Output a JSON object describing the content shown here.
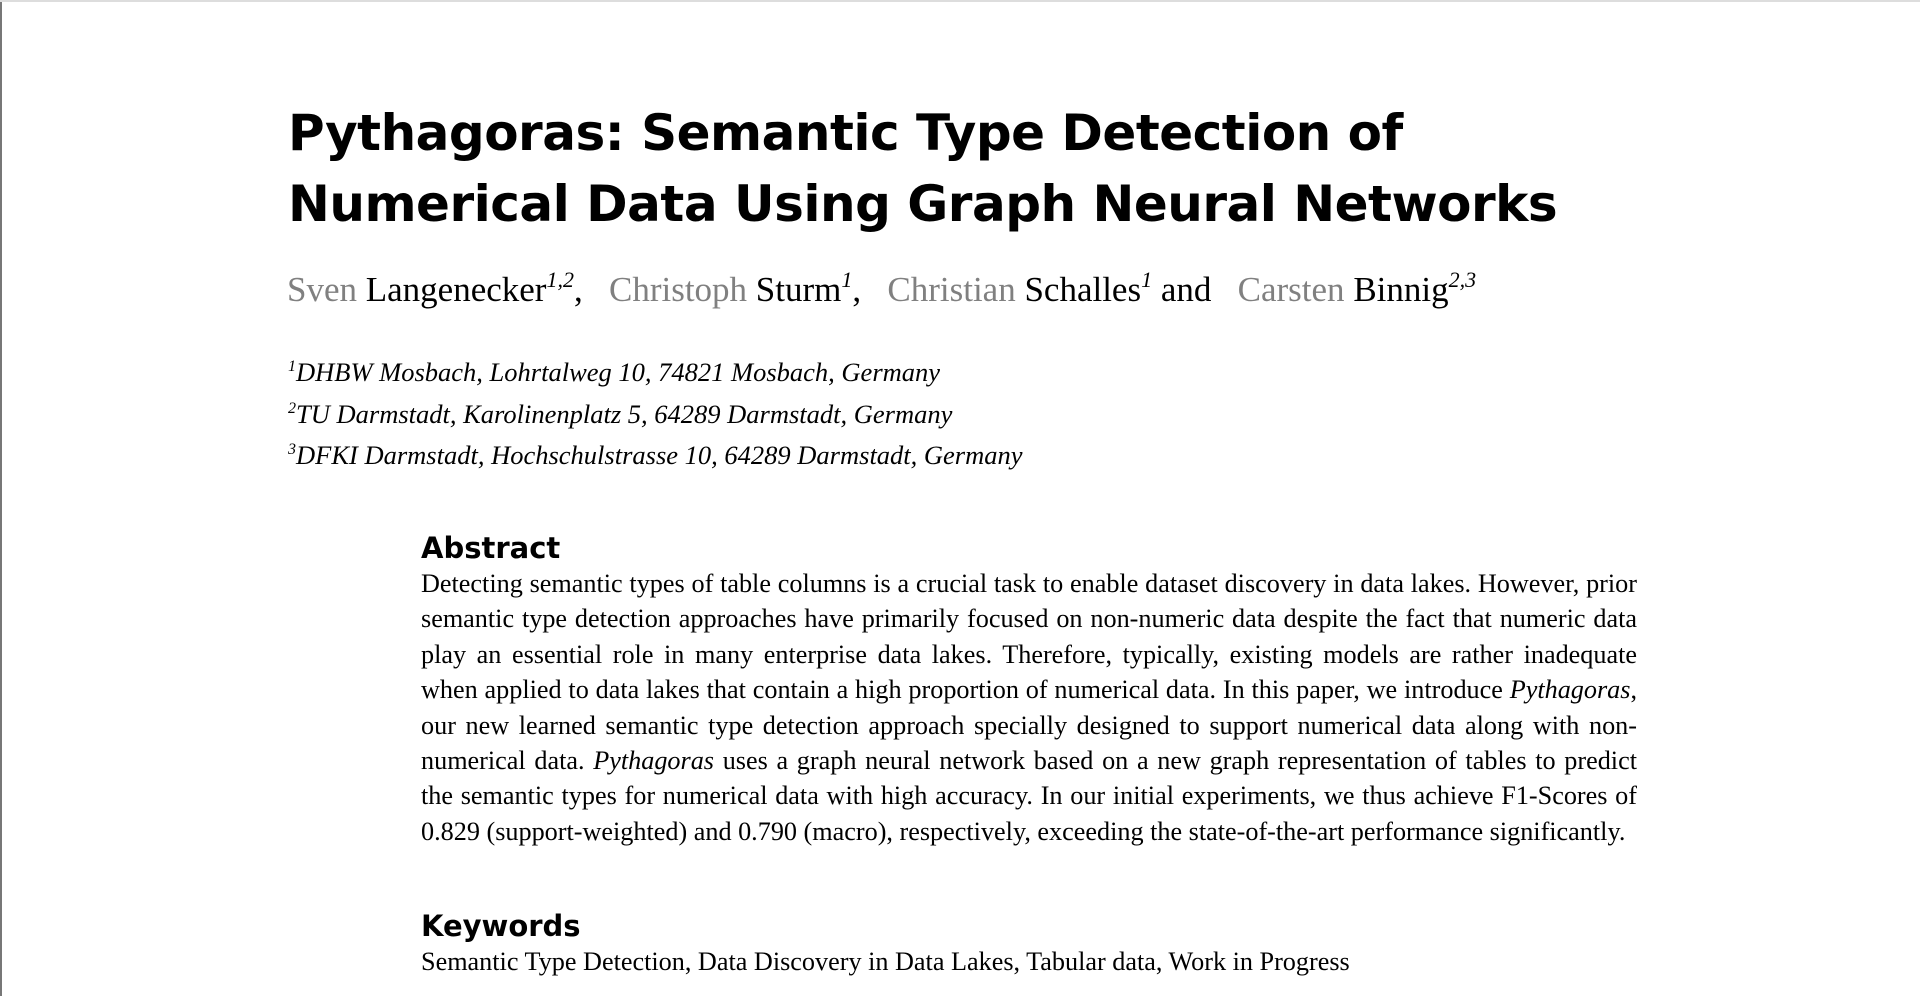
{
  "title": "Pythagoras: Semantic Type Detection of Numerical Data Using Graph Neural Networks",
  "authors": [
    {
      "given": "Sven",
      "family": "Langenecker",
      "sup": "1,2",
      "sep": ",  "
    },
    {
      "given": "Christoph",
      "family": "Sturm",
      "sup": "1",
      "sep": ",  "
    },
    {
      "given": "Christian",
      "family": "Schalles",
      "sup": "1",
      "sep": " and  "
    },
    {
      "given": "Carsten",
      "family": "Binnig",
      "sup": "2,3",
      "sep": ""
    }
  ],
  "affiliations": [
    {
      "sup": "1",
      "text": "DHBW Mosbach, Lohrtalweg 10, 74821 Mosbach, Germany"
    },
    {
      "sup": "2",
      "text": "TU Darmstadt, Karolinenplatz 5, 64289 Darmstadt, Germany"
    },
    {
      "sup": "3",
      "text": "DFKI Darmstadt, Hochschulstrasse 10, 64289 Darmstadt, Germany"
    }
  ],
  "abstract": {
    "heading": "Abstract",
    "parts": [
      "Detecting semantic types of table columns is a crucial task to enable dataset discovery in data lakes. However, prior semantic type detection approaches have primarily focused on non-numeric data despite the fact that numeric data play an essential role in many enterprise data lakes. Therefore, typically, existing models are rather inadequate when applied to data lakes that contain a high proportion of numerical data. In this paper, we introduce ",
      "Pythagoras",
      ", our new learned semantic type detection approach specially designed to support numerical data along with non-numerical data. ",
      "Pythagoras",
      " uses a graph neural network based on a new graph representation of tables to predict the semantic types for numerical data with high accuracy. In our initial experiments, we thus achieve F1-Scores of 0.829 (support-weighted) and 0.790 (macro), respectively, exceeding the state-of-the-art performance significantly."
    ]
  },
  "keywords": {
    "heading": "Keywords",
    "text": "Semantic Type Detection, Data Discovery in Data Lakes, Tabular data, Work in Progress"
  },
  "colors": {
    "given_name": "#808080",
    "text": "#000000"
  }
}
